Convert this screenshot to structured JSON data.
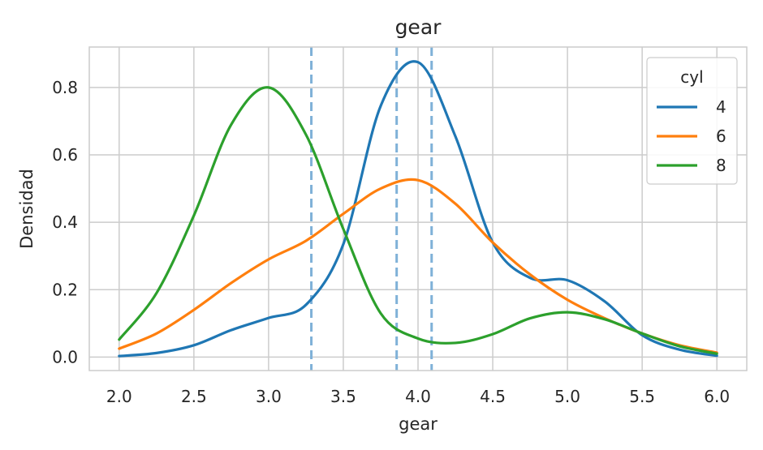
{
  "chart_data": {
    "type": "line",
    "title": "gear",
    "xlabel": "gear",
    "ylabel": "Densidad",
    "xlim": [
      1.8,
      6.2
    ],
    "ylim": [
      -0.04,
      0.92
    ],
    "x_ticks": [
      "2.0",
      "2.5",
      "3.0",
      "3.5",
      "4.0",
      "4.5",
      "5.0",
      "5.5",
      "6.0"
    ],
    "y_ticks": [
      "0.0",
      "0.2",
      "0.4",
      "0.6",
      "0.8"
    ],
    "grid": true,
    "legend": {
      "title": "cyl",
      "position": "top-right"
    },
    "x": [
      2.0,
      2.25,
      2.5,
      2.75,
      3.0,
      3.25,
      3.5,
      3.75,
      4.0,
      4.25,
      4.5,
      4.75,
      5.0,
      5.25,
      5.5,
      5.75,
      6.0
    ],
    "series": [
      {
        "name": "4",
        "color": "#1f77b4",
        "values": [
          0.003,
          0.012,
          0.035,
          0.08,
          0.116,
          0.155,
          0.335,
          0.745,
          0.875,
          0.655,
          0.34,
          0.235,
          0.228,
          0.165,
          0.065,
          0.022,
          0.004
        ]
      },
      {
        "name": "6",
        "color": "#ff7f0e",
        "values": [
          0.025,
          0.07,
          0.14,
          0.22,
          0.29,
          0.345,
          0.425,
          0.5,
          0.525,
          0.455,
          0.34,
          0.245,
          0.17,
          0.115,
          0.07,
          0.035,
          0.013
        ]
      },
      {
        "name": "8",
        "color": "#2ca02c",
        "values": [
          0.052,
          0.19,
          0.42,
          0.69,
          0.8,
          0.66,
          0.38,
          0.13,
          0.055,
          0.042,
          0.068,
          0.115,
          0.133,
          0.112,
          0.07,
          0.032,
          0.01
        ]
      }
    ],
    "vlines": {
      "color": "#7fb1d8",
      "style": "dashed",
      "x": [
        3.286,
        3.857,
        4.091
      ]
    }
  }
}
